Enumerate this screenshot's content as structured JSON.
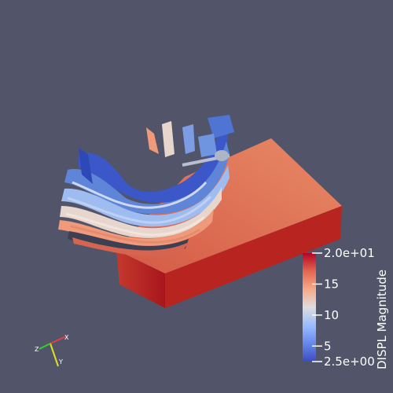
{
  "scene": {
    "background": "#525569",
    "block_colors": {
      "top": "#df6d4f",
      "front": "#b51f22",
      "side": "#c63a31"
    },
    "plate_colors": [
      "#3b57c8",
      "#5f85d8",
      "#9ebcf0",
      "#e6d6cd",
      "#ef9a7b",
      "#d56450",
      "#8fa6dc"
    ]
  },
  "legend": {
    "title": "DISPL Magnitude",
    "range": [
      2.5,
      20.0
    ],
    "ticks": [
      {
        "value": 20.0,
        "label": "2.0e+01"
      },
      {
        "value": 15,
        "label": "15"
      },
      {
        "value": 10,
        "label": "10"
      },
      {
        "value": 5,
        "label": "5"
      },
      {
        "value": 2.5,
        "label": "2.5e+00"
      }
    ],
    "colormap": [
      "#3b4cc0",
      "#6788ee",
      "#9abbff",
      "#dddddd",
      "#f7a889",
      "#e26952",
      "#b40426"
    ]
  },
  "axes_triad": {
    "labels": [
      "X",
      "Y",
      "Z"
    ],
    "colors": {
      "X": "#e04040",
      "Y": "#e0e020",
      "Z": "#30d030"
    }
  }
}
